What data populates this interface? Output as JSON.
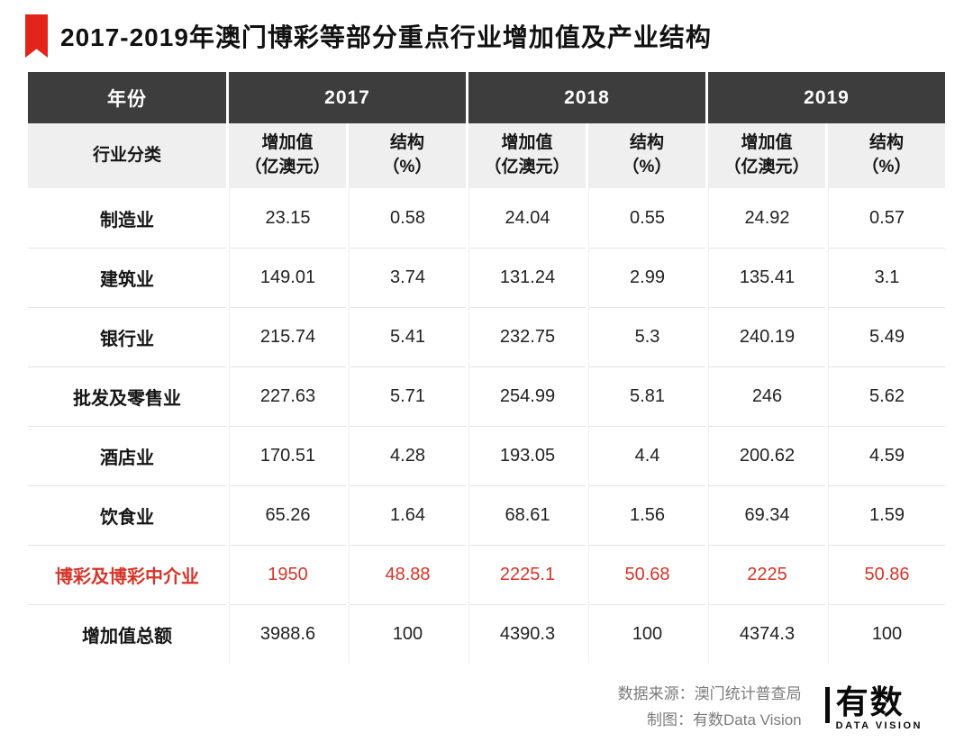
{
  "page": {
    "title": "2017-2019年澳门博彩等部分重点行业增加值及产业结构"
  },
  "chart_data": {
    "type": "table",
    "title": "2017-2019年澳门博彩等部分重点行业增加值及产业结构",
    "corner_label": "年份",
    "industry_label": "行业分类",
    "years": [
      "2017",
      "2018",
      "2019"
    ],
    "measures": {
      "value_line1": "增加值",
      "value_line2": "（亿澳元）",
      "pct_line1": "结构",
      "pct_line2": "（%）"
    },
    "rows": [
      {
        "industry": "制造业",
        "values": [
          "23.15",
          "0.58",
          "24.04",
          "0.55",
          "24.92",
          "0.57"
        ],
        "highlight": false
      },
      {
        "industry": "建筑业",
        "values": [
          "149.01",
          "3.74",
          "131.24",
          "2.99",
          "135.41",
          "3.1"
        ],
        "highlight": false
      },
      {
        "industry": "银行业",
        "values": [
          "215.74",
          "5.41",
          "232.75",
          "5.3",
          "240.19",
          "5.49"
        ],
        "highlight": false
      },
      {
        "industry": "批发及零售业",
        "values": [
          "227.63",
          "5.71",
          "254.99",
          "5.81",
          "246",
          "5.62"
        ],
        "highlight": false
      },
      {
        "industry": "酒店业",
        "values": [
          "170.51",
          "4.28",
          "193.05",
          "4.4",
          "200.62",
          "4.59"
        ],
        "highlight": false
      },
      {
        "industry": "饮食业",
        "values": [
          "65.26",
          "1.64",
          "68.61",
          "1.56",
          "69.34",
          "1.59"
        ],
        "highlight": false
      },
      {
        "industry": "博彩及博彩中介业",
        "values": [
          "1950",
          "48.88",
          "2225.1",
          "50.68",
          "2225",
          "50.86"
        ],
        "highlight": true
      },
      {
        "industry": "增加值总额",
        "values": [
          "3988.6",
          "100",
          "4390.3",
          "100",
          "4374.3",
          "100"
        ],
        "highlight": false
      }
    ]
  },
  "footer": {
    "source": "数据来源：澳门统计普查局",
    "credit": "制图：有数Data Vision",
    "logo_text": "有数",
    "logo_subtext": "DATA VISION"
  },
  "colors": {
    "accent_red": "#e2241b",
    "highlight_text": "#d5352a",
    "header_bg": "#3d3d3d",
    "subheader_bg": "#efefef"
  }
}
